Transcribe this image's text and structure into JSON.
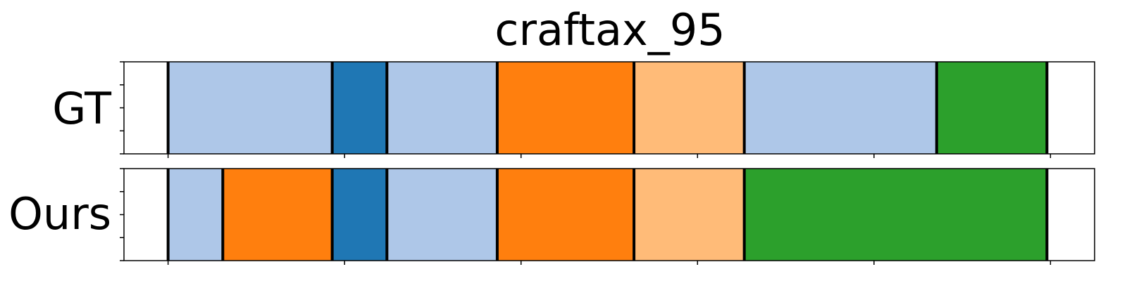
{
  "chart_data": {
    "type": "segmentation-timeline",
    "title": "craftax_95",
    "x_range": [
      -5,
      105
    ],
    "colors": {
      "light_blue": "#aec7e8",
      "blue": "#1f77b4",
      "orange": "#ff7f0e",
      "light_orange": "#ffbb78",
      "green": "#2ca02c"
    },
    "rows": [
      {
        "label": "GT",
        "segments": [
          {
            "start": 0,
            "end": 18.6,
            "color": "light_blue"
          },
          {
            "start": 18.6,
            "end": 24.8,
            "color": "blue"
          },
          {
            "start": 24.8,
            "end": 37.3,
            "color": "light_blue"
          },
          {
            "start": 37.3,
            "end": 52.8,
            "color": "orange"
          },
          {
            "start": 52.8,
            "end": 65.3,
            "color": "light_orange"
          },
          {
            "start": 65.3,
            "end": 87.1,
            "color": "light_blue"
          },
          {
            "start": 87.1,
            "end": 99.6,
            "color": "green"
          }
        ]
      },
      {
        "label": "Ours",
        "segments": [
          {
            "start": 0,
            "end": 6.2,
            "color": "light_blue"
          },
          {
            "start": 6.2,
            "end": 18.6,
            "color": "orange"
          },
          {
            "start": 18.6,
            "end": 24.8,
            "color": "blue"
          },
          {
            "start": 24.8,
            "end": 37.3,
            "color": "light_blue"
          },
          {
            "start": 37.3,
            "end": 52.8,
            "color": "orange"
          },
          {
            "start": 52.8,
            "end": 65.3,
            "color": "light_orange"
          },
          {
            "start": 65.3,
            "end": 99.6,
            "color": "green"
          }
        ]
      }
    ],
    "x_ticks": [
      0,
      20,
      40,
      60,
      80,
      100
    ],
    "y_ticks_per_row": 5,
    "grid": false,
    "legend": "none"
  }
}
